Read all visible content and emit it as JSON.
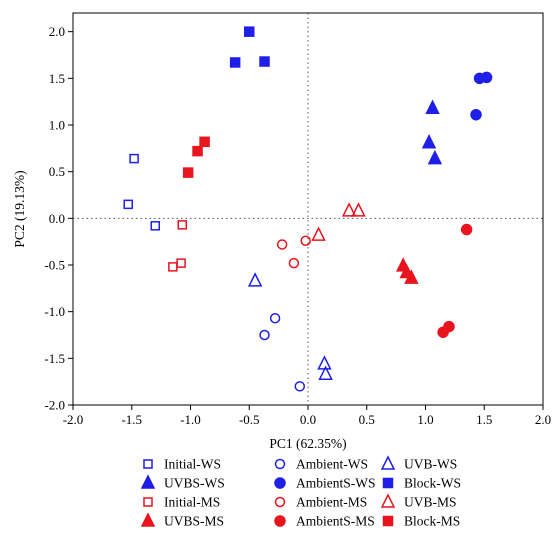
{
  "chart_data": {
    "type": "scatter",
    "title": "",
    "xlabel": "PC1 (62.35%)",
    "ylabel": "PC2 (19.13%)",
    "xlim": [
      -2.0,
      2.0
    ],
    "ylim": [
      -2.0,
      2.2
    ],
    "xticks": [
      -2.0,
      -1.5,
      -1.0,
      -0.5,
      0.0,
      0.5,
      1.0,
      1.5,
      2.0
    ],
    "yticks": [
      -2.0,
      -1.5,
      -1.0,
      -0.5,
      0.0,
      0.5,
      1.0,
      1.5,
      2.0
    ],
    "xtick_labels": [
      "-2.0",
      "-1.5",
      "-1.0",
      "-0.5",
      "0.0",
      "0.5",
      "1.0",
      "1.5",
      "2.0"
    ],
    "ytick_labels": [
      "-2.0",
      "-1.5",
      "-1.0",
      "-0.5",
      "0.0",
      "0.5",
      "1.0",
      "1.5",
      "2.0"
    ],
    "grid": false,
    "zero_lines": "dotted",
    "legend_placement": "bottom",
    "colors": {
      "WS": "#1f1fe8",
      "MS": "#e8141e"
    },
    "series": [
      {
        "name": "Initial-WS",
        "marker": "square",
        "filled": false,
        "color": "#1f1fe8",
        "points": [
          [
            -1.48,
            0.64
          ],
          [
            -1.53,
            0.15
          ],
          [
            -1.3,
            -0.08
          ]
        ]
      },
      {
        "name": "Ambient-WS",
        "marker": "circle",
        "filled": false,
        "color": "#1f1fe8",
        "points": [
          [
            -0.28,
            -1.07
          ],
          [
            -0.37,
            -1.25
          ],
          [
            -0.07,
            -1.8
          ]
        ]
      },
      {
        "name": "UVB-WS",
        "marker": "triangle",
        "filled": false,
        "color": "#1f1fe8",
        "points": [
          [
            -0.45,
            -0.67
          ],
          [
            0.14,
            -1.56
          ],
          [
            0.15,
            -1.67
          ]
        ]
      },
      {
        "name": "UVBS-WS",
        "marker": "triangle",
        "filled": true,
        "color": "#1f1fe8",
        "points": [
          [
            1.06,
            1.18
          ],
          [
            1.03,
            0.81
          ],
          [
            1.08,
            0.64
          ]
        ]
      },
      {
        "name": "AmbientS-WS",
        "marker": "circle",
        "filled": true,
        "color": "#1f1fe8",
        "points": [
          [
            1.46,
            1.5
          ],
          [
            1.52,
            1.51
          ],
          [
            1.43,
            1.11
          ]
        ]
      },
      {
        "name": "Block-WS",
        "marker": "square",
        "filled": true,
        "color": "#1f1fe8",
        "points": [
          [
            -0.5,
            2.0
          ],
          [
            -0.62,
            1.67
          ],
          [
            -0.37,
            1.68
          ]
        ]
      },
      {
        "name": "Initial-MS",
        "marker": "square",
        "filled": false,
        "color": "#e8141e",
        "points": [
          [
            -1.07,
            -0.07
          ],
          [
            -1.15,
            -0.52
          ],
          [
            -1.08,
            -0.48
          ]
        ]
      },
      {
        "name": "Ambient-MS",
        "marker": "circle",
        "filled": false,
        "color": "#e8141e",
        "points": [
          [
            -0.22,
            -0.28
          ],
          [
            -0.02,
            -0.24
          ],
          [
            -0.12,
            -0.48
          ]
        ]
      },
      {
        "name": "UVB-MS",
        "marker": "triangle",
        "filled": false,
        "color": "#e8141e",
        "points": [
          [
            0.09,
            -0.18
          ],
          [
            0.35,
            0.08
          ],
          [
            0.43,
            0.08
          ]
        ]
      },
      {
        "name": "UVBS-MS",
        "marker": "triangle",
        "filled": true,
        "color": "#e8141e",
        "points": [
          [
            0.81,
            -0.51
          ],
          [
            0.84,
            -0.58
          ],
          [
            0.88,
            -0.64
          ]
        ]
      },
      {
        "name": "AmbientS-MS",
        "marker": "circle",
        "filled": true,
        "color": "#e8141e",
        "points": [
          [
            1.35,
            -0.12
          ],
          [
            1.15,
            -1.22
          ],
          [
            1.2,
            -1.16
          ]
        ]
      },
      {
        "name": "Block-MS",
        "marker": "square",
        "filled": true,
        "color": "#e8141e",
        "points": [
          [
            -1.02,
            0.49
          ],
          [
            -0.94,
            0.72
          ],
          [
            -0.88,
            0.82
          ]
        ]
      }
    ],
    "legend_order": [
      [
        "Initial-WS",
        "Ambient-WS",
        "UVB-WS"
      ],
      [
        "UVBS-WS",
        "AmbientS-WS",
        "Block-WS"
      ],
      [
        "Initial-MS",
        "Ambient-MS",
        "UVB-MS"
      ],
      [
        "UVBS-MS",
        "AmbientS-MS",
        "Block-MS"
      ]
    ]
  }
}
